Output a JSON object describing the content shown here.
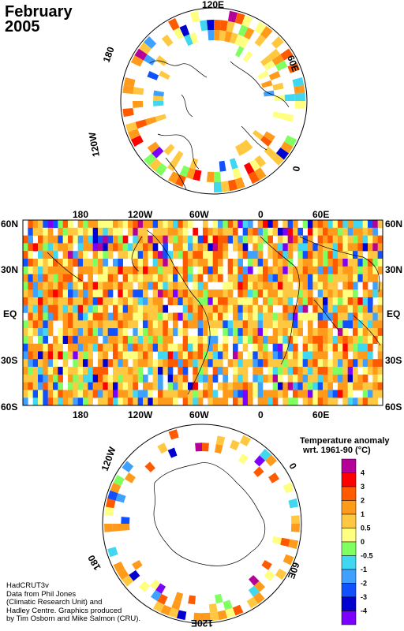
{
  "title": {
    "line1": "February",
    "line2": "2005"
  },
  "north_polar_labels": {
    "top": "120E",
    "right": "60E",
    "right_lower": "0",
    "left_lower": "120W",
    "left_upper": "180"
  },
  "map_labels": {
    "top_lon": [
      "180",
      "120W",
      "60W",
      "0",
      "60E"
    ],
    "bottom_lon": [
      "180",
      "120W",
      "60W",
      "0",
      "60E"
    ],
    "left_lat": [
      "60N",
      "30N",
      "EQ",
      "30S",
      "60S"
    ],
    "right_lat": [
      "60N",
      "30N",
      "EQ",
      "30S",
      "60S"
    ]
  },
  "south_polar_labels": {
    "upper_left": "120W",
    "upper_right": "0",
    "lower_right": "60E",
    "lower_left": "180",
    "bottom": "120E"
  },
  "legend": {
    "title_line1": "Temperature anomaly",
    "title_line2": "wrt. 1961-90  (°C)",
    "ticks": [
      "4",
      "3",
      "2",
      "1",
      "0.5",
      "0",
      "-0.5",
      "-1",
      "-2",
      "-3",
      "-4"
    ],
    "colors": [
      "#b5009a",
      "#ff0000",
      "#ff5a00",
      "#ff9a1a",
      "#ffc840",
      "#ffff80",
      "#80ff60",
      "#40d8f0",
      "#40a0ff",
      "#1050ff",
      "#0000d0",
      "#7a00ff"
    ]
  },
  "credit": {
    "line1": "HadCRUT3v",
    "line2": "Data from Phil Jones",
    "line3": "(Climatic Research Unit) and",
    "line4": "Hadley Centre.  Graphics produced",
    "line5": "by Tim Osborn and Mike Salmon (CRU)."
  }
}
